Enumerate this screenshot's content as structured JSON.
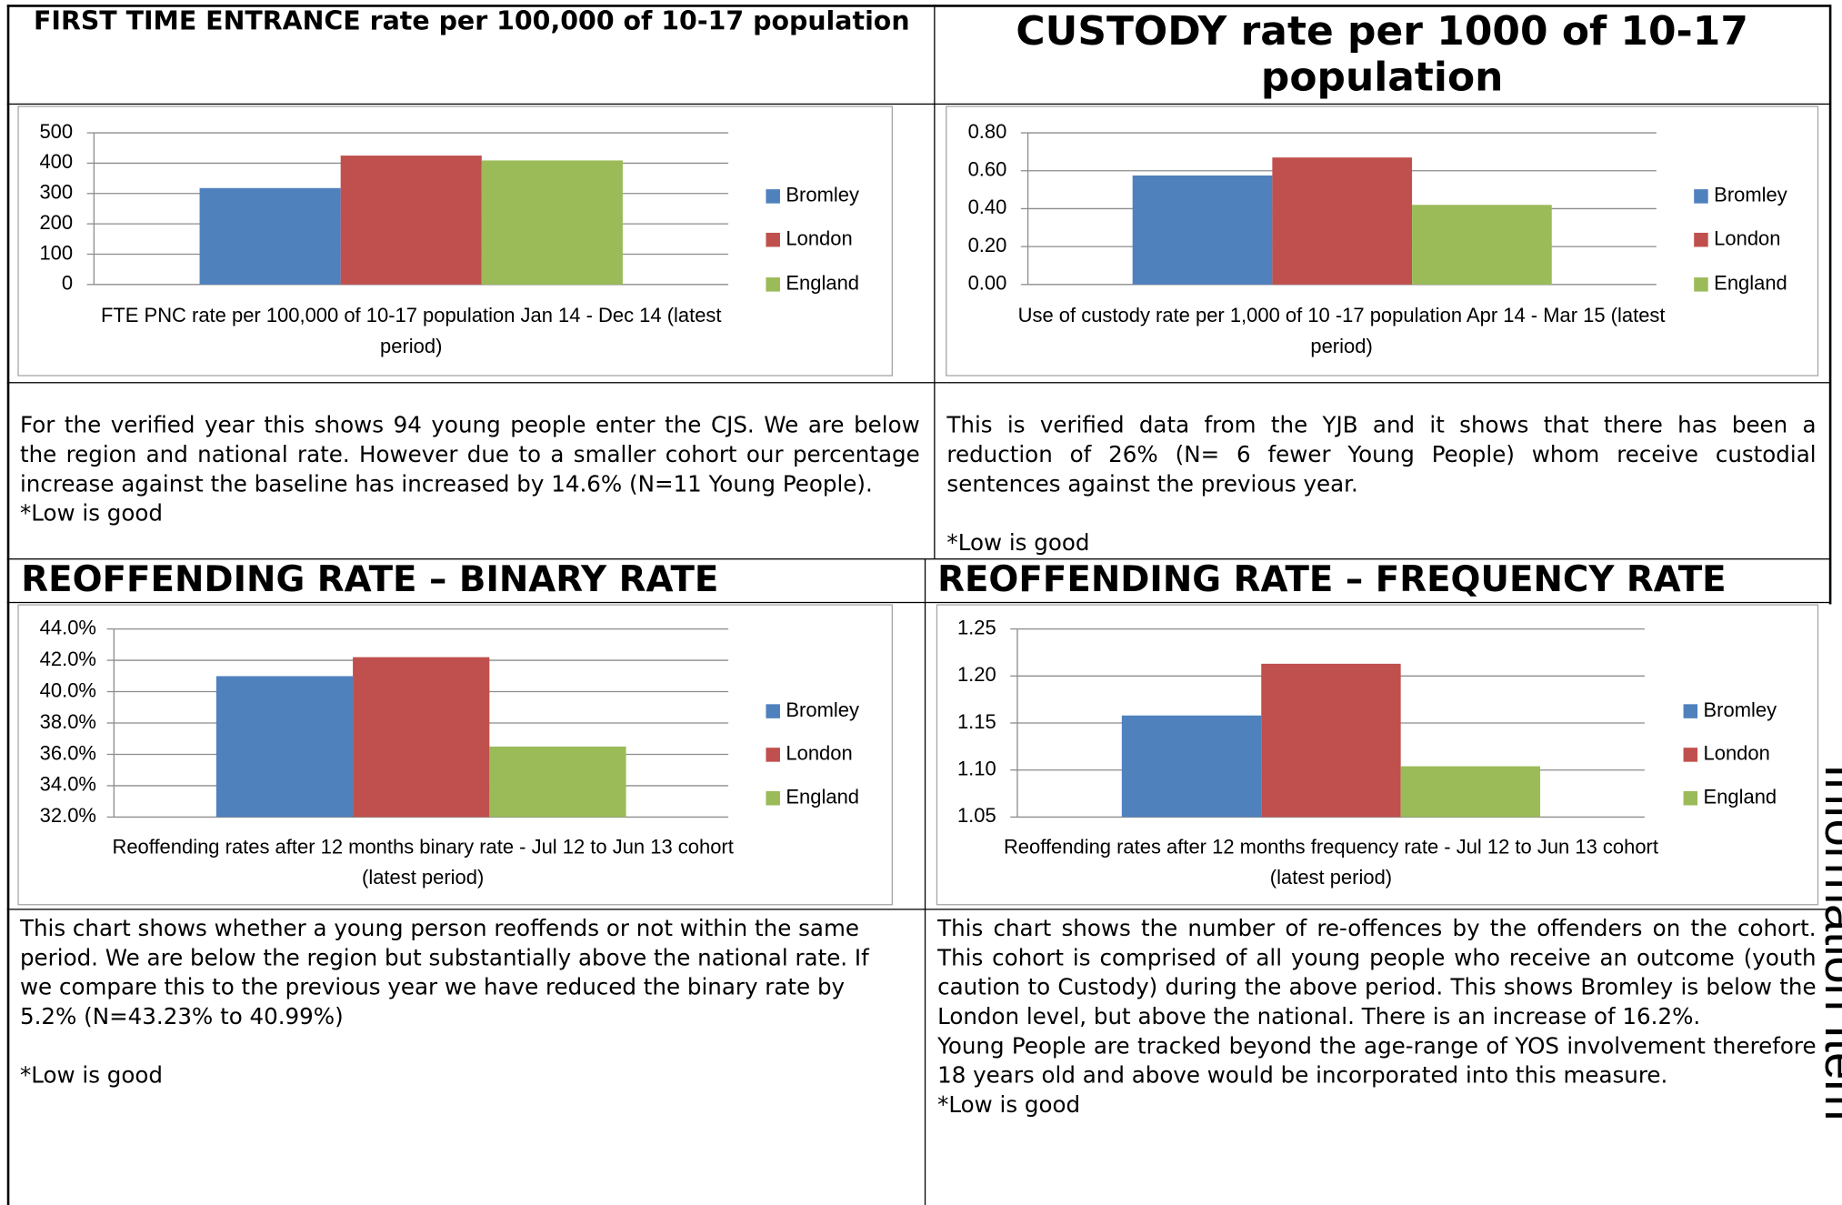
{
  "chart_data": [
    {
      "type": "bar",
      "title": "FIRST TIME ENTRANCE rate per 100,000 of 10-17 population",
      "categories": [
        "FTE PNC rate per 100,000 of 10-17 population Jan 14 - Dec 14 (latest period)"
      ],
      "series": [
        {
          "name": "Bromley",
          "color": "#4f81bd",
          "values": [
            318
          ]
        },
        {
          "name": "London",
          "color": "#c0504d",
          "values": [
            425
          ]
        },
        {
          "name": "England",
          "color": "#9bbb59",
          "values": [
            409
          ]
        }
      ],
      "ylim": [
        0,
        500
      ],
      "yticks": [
        0,
        100,
        200,
        300,
        400,
        500
      ],
      "grid": true,
      "legend": "right"
    },
    {
      "type": "bar",
      "title": "CUSTODY rate per 1000 of 10-17 population",
      "categories": [
        "Use of custody rate per 1,000 of 10 -17 population Apr 14 - Mar 15  (latest period)"
      ],
      "series": [
        {
          "name": "Bromley",
          "color": "#4f81bd",
          "values": [
            0.575
          ]
        },
        {
          "name": "London",
          "color": "#c0504d",
          "values": [
            0.67
          ]
        },
        {
          "name": "England",
          "color": "#9bbb59",
          "values": [
            0.42
          ]
        }
      ],
      "ylim": [
        0,
        0.8
      ],
      "yticks": [
        {
          "value": 0,
          "label": "0.00"
        },
        {
          "value": 0.2,
          "label": "0.20"
        },
        {
          "value": 0.4,
          "label": "0.40"
        },
        {
          "value": 0.6,
          "label": "0.60"
        },
        {
          "value": 0.8,
          "label": "0.80"
        }
      ],
      "grid": true,
      "legend": "right"
    },
    {
      "type": "bar",
      "title": "REOFFENDING RATE – BINARY RATE",
      "categories": [
        "Reoffending rates after 12 months binary rate - Jul 12 to Jun 13 cohort (latest period)"
      ],
      "series": [
        {
          "name": "Bromley",
          "color": "#4f81bd",
          "values": [
            40.99
          ]
        },
        {
          "name": "London",
          "color": "#c0504d",
          "values": [
            42.2
          ]
        },
        {
          "name": "England",
          "color": "#9bbb59",
          "values": [
            36.5
          ]
        }
      ],
      "ylim": [
        32,
        44
      ],
      "yticks": [
        {
          "value": 32,
          "label": "32.0%"
        },
        {
          "value": 34,
          "label": "34.0%"
        },
        {
          "value": 36,
          "label": "36.0%"
        },
        {
          "value": 38,
          "label": "38.0%"
        },
        {
          "value": 40,
          "label": "40.0%"
        },
        {
          "value": 42,
          "label": "42.0%"
        },
        {
          "value": 44,
          "label": "44.0%"
        }
      ],
      "grid": true,
      "legend": "right"
    },
    {
      "type": "bar",
      "title": "REOFFENDING RATE – FREQUENCY RATE",
      "categories": [
        "Reoffending rates after 12 months frequency rate - Jul 12 to Jun 13 cohort  (latest period)"
      ],
      "series": [
        {
          "name": "Bromley",
          "color": "#4f81bd",
          "values": [
            1.158
          ]
        },
        {
          "name": "London",
          "color": "#c0504d",
          "values": [
            1.213
          ]
        },
        {
          "name": "England",
          "color": "#9bbb59",
          "values": [
            1.104
          ]
        }
      ],
      "ylim": [
        1.05,
        1.25
      ],
      "yticks": [
        1.05,
        {
          "value": 1.1,
          "label": "1.10"
        },
        1.15,
        {
          "value": 1.2,
          "label": "1.20"
        },
        1.25
      ],
      "grid": true,
      "legend": "right"
    }
  ],
  "panels": [
    {
      "paragraphs": [
        "For the verified year this shows 94 young people enter the CJS. We are below the region and national rate. However due to a smaller cohort our percentage increase against the baseline has increased by 14.6% (N=11 Young People).",
        "*Low is good"
      ]
    },
    {
      "paragraphs": [
        "This is verified data from the YJB and it shows that there has been a reduction of 26% (N= 6 fewer Young People) whom receive custodial sentences against the previous year.",
        "*Low is good"
      ]
    },
    {
      "paragraphs": [
        "This chart shows whether a young person reoffends or not within the same period. We are below the region but substantially above the national rate. If we compare this to the previous year we have reduced the binary rate by 5.2% (N=43.23% to 40.99%)",
        "*Low is good"
      ]
    },
    {
      "paragraphs": [
        "This chart shows the number of re-offences by the offenders on the cohort. This cohort is comprised of all young people who receive an outcome (youth caution to Custody) during the above period. This shows Bromley is below the London level, but above the national. There is an increase of 16.2%.",
        "Young People are tracked beyond the age-range of YOS involvement therefore 18 years old and above would be incorporated into this measure.",
        "*Low is good"
      ]
    }
  ],
  "side_label": "Information Item"
}
